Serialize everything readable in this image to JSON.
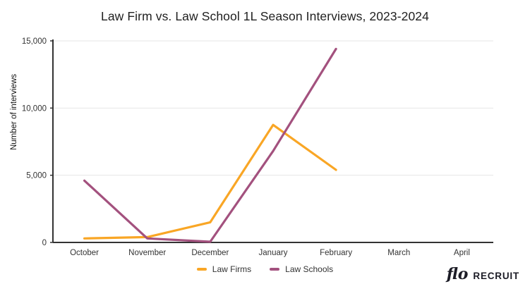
{
  "logo": {
    "script": "flo",
    "wordmark": "RECRUIT"
  },
  "chart_data": {
    "type": "line",
    "title": "Law Firm vs. Law School 1L Season Interviews, 2023-2024",
    "xlabel": "",
    "ylabel": "Number of interviews",
    "categories": [
      "October",
      "November",
      "December",
      "January",
      "February",
      "March",
      "April"
    ],
    "series": [
      {
        "name": "Law Firms",
        "color": "#F9A625",
        "values": [
          300,
          400,
          1500,
          8750,
          5400,
          null,
          null
        ]
      },
      {
        "name": "Law Schools",
        "color": "#A3517E",
        "values": [
          4600,
          300,
          50,
          6800,
          14400,
          null,
          null
        ]
      }
    ],
    "ylim": [
      0,
      15000
    ],
    "yticks": [
      {
        "value": 0,
        "label": "0"
      },
      {
        "value": 5000,
        "label": "5,000"
      },
      {
        "value": 10000,
        "label": "10,000"
      },
      {
        "value": 15000,
        "label": "15,000"
      }
    ],
    "grid": "horizontal gridlines on",
    "legend_position": "bottom center",
    "colors": {
      "axis": "#333333",
      "grid": "#e6e6e6",
      "tick_text": "#333333",
      "title_text": "#212121"
    }
  }
}
